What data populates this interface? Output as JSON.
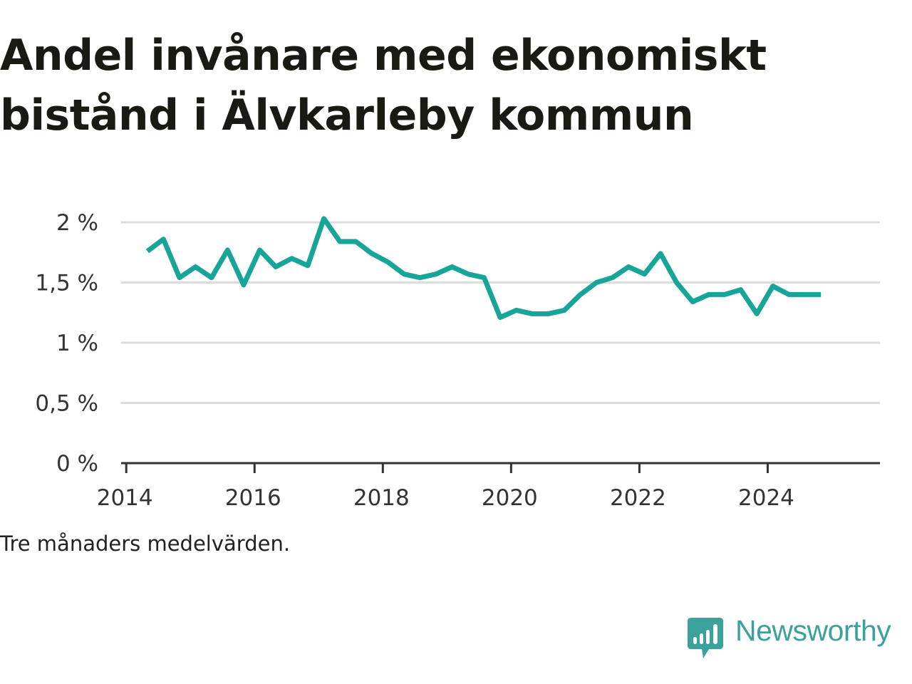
{
  "title": {
    "line1": "Andel invånare med ekonomiskt",
    "line2": "bistånd i Älvkarleby kommun"
  },
  "note": "Tre månaders medelvärden.",
  "brand": {
    "name": "Newsworthy",
    "icon": "newsworthy-logo-icon",
    "color": "#3aa29b"
  },
  "colors": {
    "line": "#17a59a",
    "grid": "#dcdcdc",
    "axis": "#333333",
    "text": "#333333"
  },
  "chart_data": {
    "type": "line",
    "title": "Andel invånare med ekonomiskt bistånd i Älvkarleby kommun",
    "xlabel": "",
    "ylabel": "",
    "xlim": [
      2013.92,
      2025.75
    ],
    "ylim": [
      0,
      2
    ],
    "grid": true,
    "x_ticks": [
      {
        "value": 2014,
        "label": "2014"
      },
      {
        "value": 2016,
        "label": "2016"
      },
      {
        "value": 2018,
        "label": "2018"
      },
      {
        "value": 2020,
        "label": "2020"
      },
      {
        "value": 2022,
        "label": "2022"
      },
      {
        "value": 2024,
        "label": "2024"
      }
    ],
    "y_ticks": [
      {
        "value": 0,
        "label": "0 %"
      },
      {
        "value": 0.5,
        "label": "0,5 %"
      },
      {
        "value": 1,
        "label": "1 %"
      },
      {
        "value": 1.5,
        "label": "1,5 %"
      },
      {
        "value": 2,
        "label": "2 %"
      }
    ],
    "series": [
      {
        "name": "Andel invånare med ekonomiskt bistånd",
        "x": [
          2014.33,
          2014.58,
          2014.83,
          2015.08,
          2015.33,
          2015.58,
          2015.83,
          2016.08,
          2016.33,
          2016.58,
          2016.83,
          2017.08,
          2017.33,
          2017.58,
          2017.83,
          2018.08,
          2018.33,
          2018.58,
          2018.83,
          2019.08,
          2019.33,
          2019.58,
          2019.83,
          2020.08,
          2020.33,
          2020.58,
          2020.83,
          2021.08,
          2021.33,
          2021.58,
          2021.83,
          2022.08,
          2022.33,
          2022.58,
          2022.83,
          2023.08,
          2023.33,
          2023.58,
          2023.83,
          2024.08,
          2024.33,
          2024.58,
          2024.83
        ],
        "values": [
          1.76,
          1.86,
          1.54,
          1.63,
          1.54,
          1.77,
          1.48,
          1.77,
          1.63,
          1.7,
          1.64,
          2.03,
          1.84,
          1.84,
          1.74,
          1.67,
          1.57,
          1.54,
          1.57,
          1.63,
          1.57,
          1.54,
          1.21,
          1.27,
          1.24,
          1.24,
          1.27,
          1.4,
          1.5,
          1.54,
          1.63,
          1.57,
          1.74,
          1.5,
          1.34,
          1.4,
          1.4,
          1.44,
          1.24,
          1.47,
          1.4,
          1.4,
          1.4
        ]
      }
    ]
  }
}
